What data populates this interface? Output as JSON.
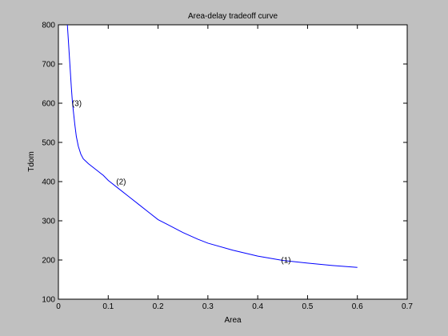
{
  "window": {
    "background_color": "#c0c0c0"
  },
  "chart_data": {
    "type": "line",
    "title": "Area-delay tradeoff curve",
    "xlabel": "Area",
    "ylabel": "Tdom",
    "xlim": [
      0,
      0.7
    ],
    "ylim": [
      100,
      800
    ],
    "xticks": [
      0,
      0.1,
      0.2,
      0.3,
      0.4,
      0.5,
      0.6,
      0.7
    ],
    "xtick_labels": [
      "0",
      "0.1",
      "0.2",
      "0.3",
      "0.4",
      "0.5",
      "0.6",
      "0.7"
    ],
    "yticks": [
      100,
      200,
      300,
      400,
      500,
      600,
      700,
      800
    ],
    "ytick_labels": [
      "100",
      "200",
      "300",
      "400",
      "500",
      "600",
      "700",
      "800"
    ],
    "grid": false,
    "legend": "none",
    "plot_background": "#ffffff",
    "series": [
      {
        "color": "#0000ff",
        "x": [
          0.018,
          0.02,
          0.022,
          0.024,
          0.026,
          0.028,
          0.03,
          0.033,
          0.036,
          0.04,
          0.045,
          0.05,
          0.055,
          0.06,
          0.07,
          0.08,
          0.09,
          0.1,
          0.12,
          0.14,
          0.16,
          0.18,
          0.2,
          0.22,
          0.25,
          0.28,
          0.3,
          0.35,
          0.4,
          0.45,
          0.5,
          0.55,
          0.6
        ],
        "y": [
          800,
          760,
          720,
          680,
          640,
          605,
          580,
          545,
          515,
          490,
          470,
          458,
          452,
          446,
          436,
          426,
          416,
          403,
          383,
          363,
          343,
          323,
          303,
          290,
          270,
          253,
          243,
          225,
          210,
          199,
          192,
          186,
          181
        ]
      }
    ],
    "annotations": [
      {
        "text": "(3)",
        "x": 0.027,
        "y": 600
      },
      {
        "text": "(2)",
        "x": 0.116,
        "y": 400
      },
      {
        "text": "(1)",
        "x": 0.447,
        "y": 200
      }
    ]
  }
}
